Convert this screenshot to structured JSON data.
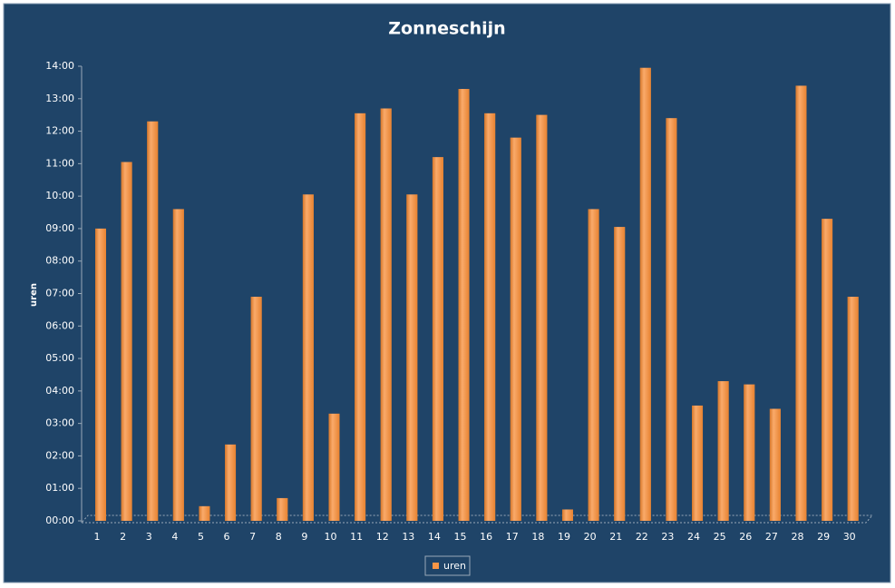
{
  "chart_data": {
    "type": "bar",
    "title": "Zonneschijn",
    "y_label": "uren",
    "categories": [
      "1",
      "2",
      "3",
      "4",
      "5",
      "6",
      "7",
      "8",
      "9",
      "10",
      "11",
      "12",
      "13",
      "14",
      "15",
      "16",
      "17",
      "18",
      "19",
      "20",
      "21",
      "22",
      "23",
      "24",
      "25",
      "26",
      "27",
      "28",
      "29",
      "30"
    ],
    "series": [
      {
        "name": "uren",
        "color": "#f79646",
        "values": [
          9.0,
          11.05,
          12.3,
          9.6,
          0.45,
          2.35,
          6.9,
          0.7,
          10.05,
          3.3,
          12.55,
          12.7,
          10.05,
          11.2,
          13.3,
          12.55,
          11.8,
          12.5,
          0.35,
          9.6,
          9.05,
          13.95,
          12.4,
          3.55,
          4.3,
          4.2,
          3.45,
          13.4,
          9.3,
          6.9
        ]
      }
    ],
    "ylim": [
      0,
      14
    ],
    "yticks": [
      {
        "value": 0,
        "label": "00:00"
      },
      {
        "value": 1,
        "label": "01:00"
      },
      {
        "value": 2,
        "label": "02:00"
      },
      {
        "value": 3,
        "label": "03:00"
      },
      {
        "value": 4,
        "label": "04:00"
      },
      {
        "value": 5,
        "label": "05:00"
      },
      {
        "value": 6,
        "label": "06:00"
      },
      {
        "value": 7,
        "label": "07:00"
      },
      {
        "value": 8,
        "label": "08:00"
      },
      {
        "value": 9,
        "label": "09:00"
      },
      {
        "value": 10,
        "label": "10:00"
      },
      {
        "value": 11,
        "label": "11:00"
      },
      {
        "value": 12,
        "label": "12:00"
      },
      {
        "value": 13,
        "label": "13:00"
      },
      {
        "value": 14,
        "label": "14:00"
      }
    ],
    "grid": false,
    "legend": "bottom"
  }
}
